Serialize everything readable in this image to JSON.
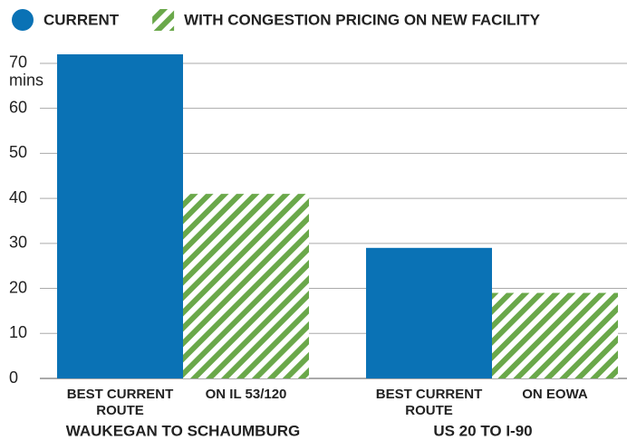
{
  "chart_data": {
    "type": "bar",
    "categories": [
      "WAUKEGAN TO SCHAUMBURG",
      "US 20 TO I-90"
    ],
    "series": [
      {
        "name": "CURRENT",
        "color": "#0a72b5",
        "pattern": "solid",
        "bar_labels": [
          "BEST CURRENT ROUTE",
          "BEST CURRENT ROUTE"
        ],
        "values": [
          72,
          29
        ]
      },
      {
        "name": "WITH CONGESTION PRICING ON NEW FACILITY",
        "color": "#6aa84a",
        "pattern": "hatch",
        "bar_labels": [
          "ON IL 53/120",
          "ON EOWA"
        ],
        "values": [
          41,
          19
        ]
      }
    ],
    "y_unit": "mins",
    "ylim": [
      0,
      72
    ],
    "yticks": [
      0,
      10,
      20,
      30,
      40,
      50,
      60,
      70
    ],
    "grid": true
  }
}
